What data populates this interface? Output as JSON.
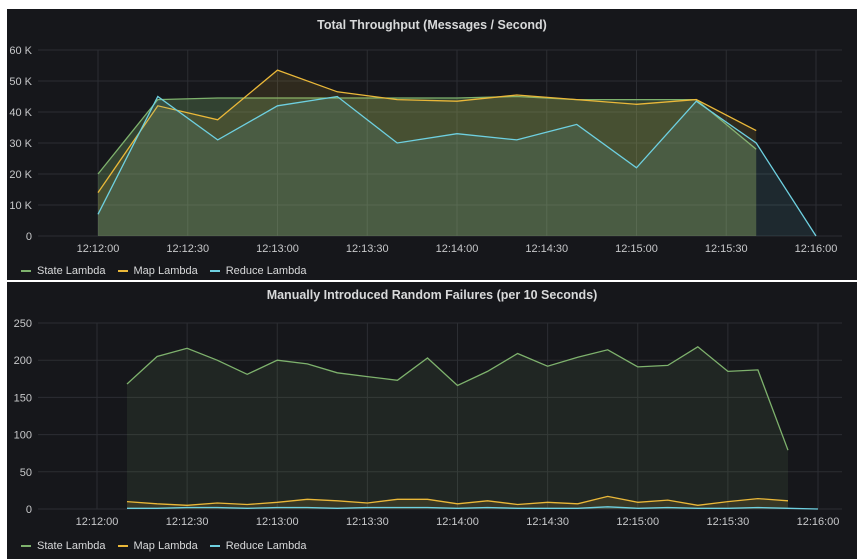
{
  "colors": {
    "State Lambda": "#7eb26d",
    "Map Lambda": "#eab839",
    "Reduce Lambda": "#6ed0e0",
    "grid": "#2c2e33"
  },
  "chart_data": [
    {
      "type": "area",
      "title": "Total Throughput (Messages / Second)",
      "xlabel": "",
      "ylabel": "",
      "ylim": [
        0,
        60000
      ],
      "yticks": [
        0,
        10000,
        20000,
        30000,
        40000,
        50000,
        60000
      ],
      "ytick_labels": [
        "0",
        "10 K",
        "20 K",
        "30 K",
        "40 K",
        "50 K",
        "60 K"
      ],
      "xlim": [
        "12:12:00",
        "12:16:00"
      ],
      "xtick_labels": [
        "12:12:00",
        "12:12:30",
        "12:13:00",
        "12:13:30",
        "12:14:00",
        "12:14:30",
        "12:15:00",
        "12:15:30",
        "12:16:00"
      ],
      "grid": true,
      "legend": "bottom-left",
      "series": [
        {
          "name": "State Lambda",
          "start": "12:12:00",
          "step_seconds": 20,
          "values": [
            20000,
            44000,
            44500,
            44500,
            44500,
            44500,
            44500,
            45000,
            44000,
            44000,
            44000,
            28000
          ],
          "fill_opacity": 0.28
        },
        {
          "name": "Map Lambda",
          "start": "12:12:00",
          "step_seconds": 20,
          "values": [
            14000,
            42000,
            37500,
            53500,
            46500,
            44000,
            43500,
            45500,
            44000,
            42500,
            44000,
            34000
          ],
          "fill_opacity": 0.12
        },
        {
          "name": "Reduce Lambda",
          "start": "12:12:00",
          "step_seconds": 20,
          "values": [
            7000,
            45000,
            31000,
            42000,
            45000,
            30000,
            33000,
            31000,
            36000,
            22000,
            43500,
            30000,
            0
          ],
          "fill_opacity": 0.1
        }
      ]
    },
    {
      "type": "area",
      "title": "Manually Introduced Random Failures (per 10 Seconds)",
      "xlabel": "",
      "ylabel": "",
      "ylim": [
        0,
        250
      ],
      "yticks": [
        0,
        50,
        100,
        150,
        200,
        250
      ],
      "ytick_labels": [
        "0",
        "50",
        "100",
        "150",
        "200",
        "250"
      ],
      "xlim": [
        "12:12:00",
        "12:16:00"
      ],
      "xtick_labels": [
        "12:12:00",
        "12:12:30",
        "12:13:00",
        "12:13:30",
        "12:14:00",
        "12:14:30",
        "12:15:00",
        "12:15:30",
        "12:16:00"
      ],
      "grid": true,
      "legend": "bottom-left",
      "series": [
        {
          "name": "State Lambda",
          "start": "12:12:10",
          "step_seconds": 10,
          "values": [
            168,
            205,
            216,
            200,
            181,
            200,
            195,
            183,
            178,
            173,
            203,
            166,
            185,
            209,
            192,
            204,
            214,
            191,
            193,
            218,
            185,
            187,
            79
          ],
          "fill_opacity": 0.1
        },
        {
          "name": "Map Lambda",
          "start": "12:12:10",
          "step_seconds": 10,
          "values": [
            10,
            7,
            5,
            8,
            6,
            9,
            13,
            11,
            8,
            13,
            13,
            7,
            11,
            6,
            9,
            7,
            17,
            9,
            12,
            5,
            10,
            14,
            11
          ],
          "fill_opacity": 0.12
        },
        {
          "name": "Reduce Lambda",
          "start": "12:12:10",
          "step_seconds": 10,
          "values": [
            1,
            1,
            2,
            2,
            1,
            2,
            2,
            1,
            2,
            2,
            2,
            1,
            2,
            1,
            1,
            1,
            3,
            1,
            2,
            1,
            1,
            2,
            1,
            0
          ],
          "fill_opacity": 0.1
        }
      ]
    }
  ]
}
